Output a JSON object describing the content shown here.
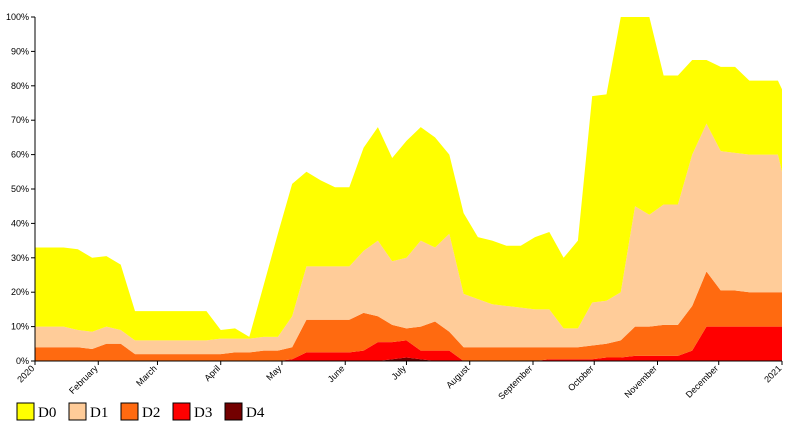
{
  "chart_data": {
    "type": "stacked_area",
    "x": [
      0,
      7,
      14,
      21,
      28,
      35,
      42,
      49,
      56,
      63,
      70,
      77,
      84,
      91,
      98,
      105,
      112,
      119,
      126,
      133,
      140,
      147,
      154,
      161,
      168,
      175,
      182,
      189,
      196,
      203,
      210,
      217,
      224,
      231,
      238,
      245,
      252,
      259,
      266,
      273,
      280,
      287,
      294,
      301,
      308,
      315,
      322,
      329,
      336,
      343,
      350,
      357,
      364,
      366
    ],
    "xlim": [
      0,
      366
    ],
    "xticks": [
      {
        "value": 0,
        "label": "2020"
      },
      {
        "value": 31,
        "label": "February"
      },
      {
        "value": 60,
        "label": "March"
      },
      {
        "value": 91,
        "label": "April"
      },
      {
        "value": 121,
        "label": "May"
      },
      {
        "value": 152,
        "label": "June"
      },
      {
        "value": 182,
        "label": "July"
      },
      {
        "value": 213,
        "label": "August"
      },
      {
        "value": 244,
        "label": "September"
      },
      {
        "value": 274,
        "label": "October"
      },
      {
        "value": 305,
        "label": "November"
      },
      {
        "value": 335,
        "label": "December"
      },
      {
        "value": 366,
        "label": "2021"
      }
    ],
    "ylim": [
      0,
      100
    ],
    "yticks": [
      {
        "value": 0,
        "label": "0%"
      },
      {
        "value": 10,
        "label": "10%"
      },
      {
        "value": 20,
        "label": "20%"
      },
      {
        "value": 30,
        "label": "30%"
      },
      {
        "value": 40,
        "label": "40%"
      },
      {
        "value": 50,
        "label": "50%"
      },
      {
        "value": 60,
        "label": "60%"
      },
      {
        "value": 70,
        "label": "70%"
      },
      {
        "value": 80,
        "label": "80%"
      },
      {
        "value": 90,
        "label": "90%"
      },
      {
        "value": 100,
        "label": "100%"
      }
    ],
    "series": [
      {
        "name": "D0",
        "color": "#ffff00",
        "values": [
          23,
          23,
          23,
          23.5,
          21.5,
          20.5,
          19,
          8.5,
          8.5,
          8.5,
          8.5,
          8.5,
          8.5,
          2.5,
          3,
          0.5,
          15,
          30,
          38.5,
          27.5,
          25,
          23,
          23,
          30,
          33,
          30,
          34,
          33,
          32,
          23,
          23.5,
          18,
          18.5,
          17.5,
          18,
          21,
          22.5,
          20.5,
          25.5,
          60,
          60,
          80,
          55,
          57.5,
          37.5,
          37.5,
          27.5,
          18.5,
          24.5,
          25,
          21.5,
          21.5,
          21.5,
          24
        ]
      },
      {
        "name": "D1",
        "color": "#ffcc99",
        "values": [
          6,
          6,
          6,
          5,
          5,
          5,
          4,
          4,
          4,
          4,
          4,
          4,
          4,
          4.5,
          4,
          4,
          4,
          4,
          9,
          15.5,
          15.5,
          15.5,
          15.5,
          18,
          22,
          18.5,
          20.5,
          25,
          21.5,
          28.5,
          15.5,
          14,
          12.5,
          12,
          11.5,
          11,
          11,
          5.5,
          5.5,
          12.5,
          12.5,
          14,
          35,
          32.5,
          35,
          35,
          44,
          43,
          40.5,
          40,
          40,
          40,
          40,
          35
        ]
      },
      {
        "name": "D2",
        "color": "#ff6a10",
        "values": [
          4,
          4,
          4,
          4,
          3.5,
          5,
          5,
          2,
          2,
          2,
          2,
          2,
          2,
          2,
          2.5,
          2.5,
          3,
          3,
          3.5,
          9.5,
          9.5,
          9.5,
          9.5,
          11,
          7.5,
          5,
          3.5,
          7,
          8.5,
          5.5,
          4,
          4,
          4,
          4,
          4,
          4,
          3.5,
          3.5,
          3.5,
          4,
          4,
          5,
          8.5,
          8.5,
          9,
          9,
          13,
          16,
          10.5,
          10.5,
          10,
          10,
          10,
          10
        ]
      },
      {
        "name": "D3",
        "color": "#ff0000",
        "values": [
          0,
          0,
          0,
          0,
          0,
          0,
          0,
          0,
          0,
          0,
          0,
          0,
          0,
          0,
          0,
          0,
          0,
          0,
          0.5,
          2.5,
          2.5,
          2.5,
          2.5,
          3,
          5.5,
          5,
          5,
          2.5,
          3,
          3,
          0,
          0,
          0,
          0,
          0,
          0,
          0.5,
          0.5,
          0.5,
          0.5,
          1,
          1,
          1.5,
          1.5,
          1.5,
          1.5,
          3,
          10,
          10,
          10,
          10,
          10,
          10,
          10
        ]
      },
      {
        "name": "D4",
        "color": "#730000",
        "values": [
          0,
          0,
          0,
          0,
          0,
          0,
          0,
          0,
          0,
          0,
          0,
          0,
          0,
          0,
          0,
          0,
          0,
          0,
          0,
          0,
          0,
          0,
          0,
          0,
          0,
          0.5,
          1,
          0.5,
          0,
          0,
          0,
          0,
          0,
          0,
          0,
          0,
          0,
          0,
          0,
          0,
          0,
          0,
          0,
          0,
          0,
          0,
          0,
          0,
          0,
          0,
          0,
          0,
          0,
          0
        ]
      }
    ]
  }
}
